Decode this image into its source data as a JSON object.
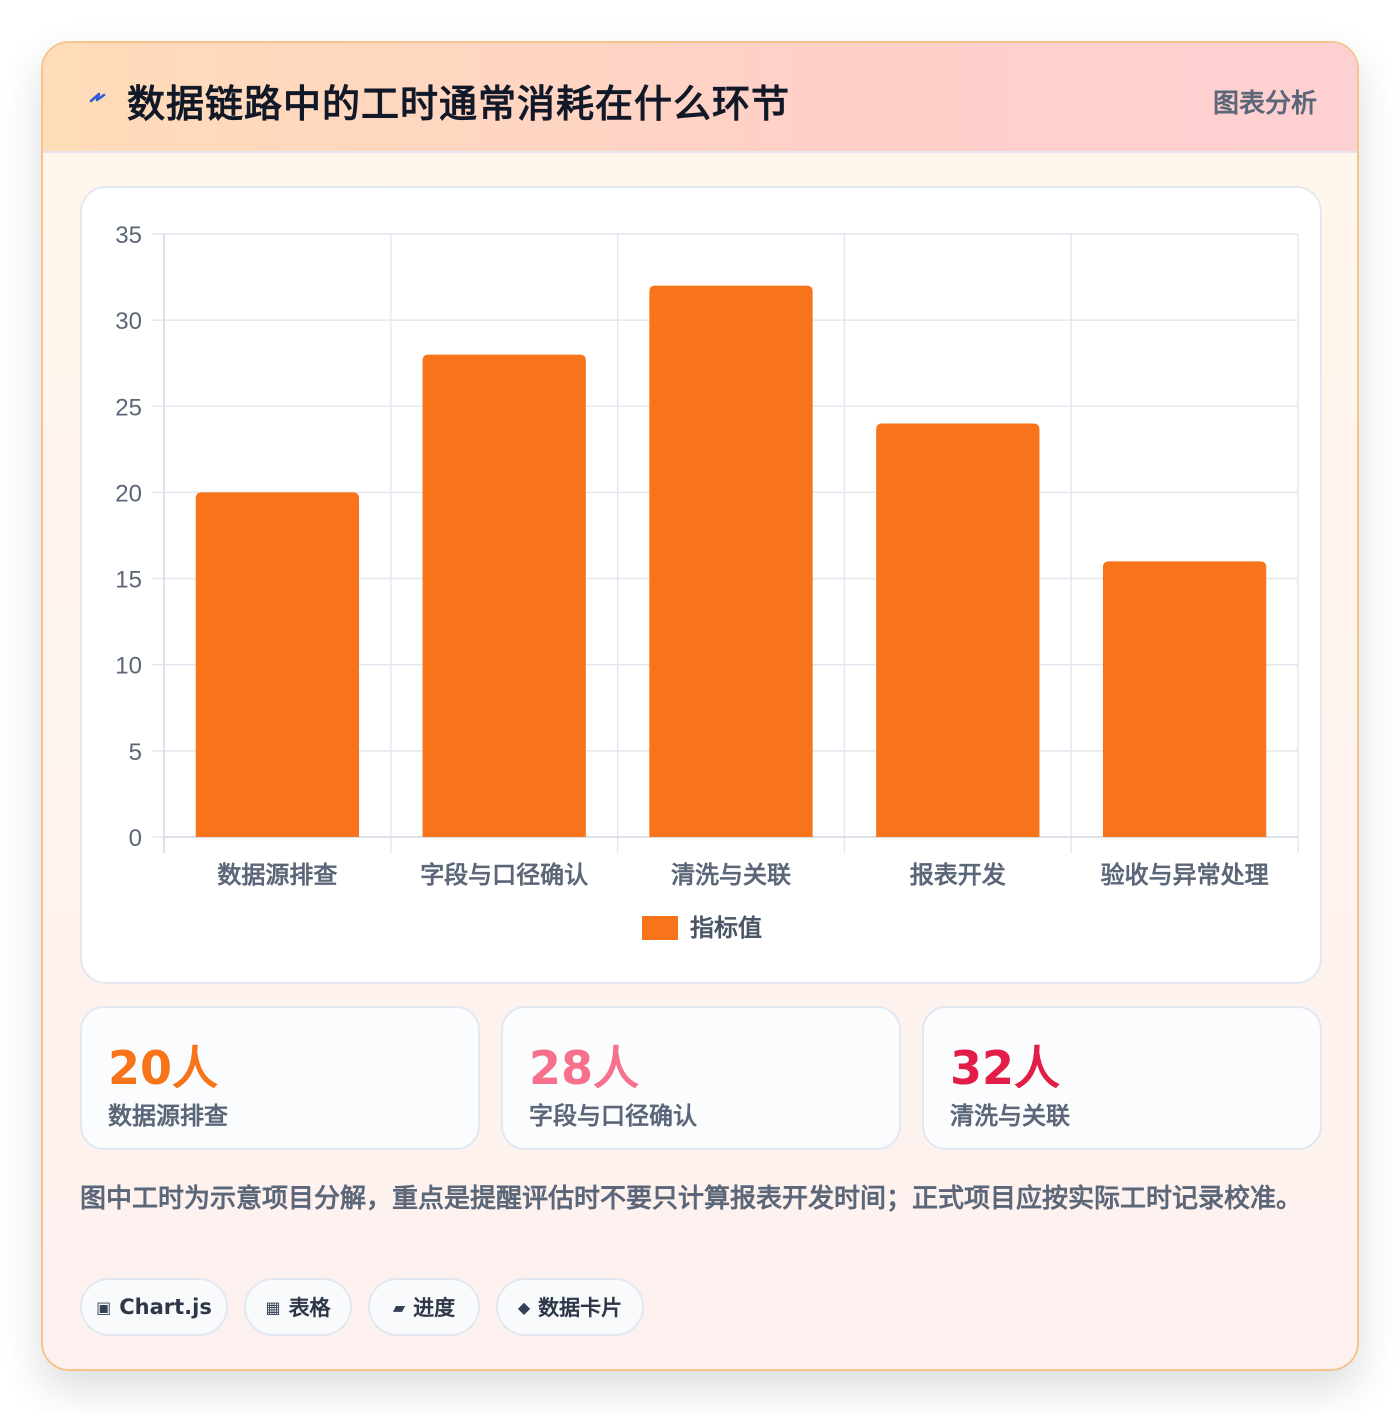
{
  "header": {
    "icon": "lightning-bolt-icon",
    "title": "数据链路中的工时通常消耗在什么环节",
    "tag": "图表分析"
  },
  "chart_data": {
    "type": "bar",
    "categories": [
      "数据源排查",
      "字段与口径确认",
      "清洗与关联",
      "报表开发",
      "验收与异常处理"
    ],
    "series": [
      {
        "name": "指标值",
        "values": [
          20,
          28,
          32,
          24,
          16
        ],
        "color": "#f7741a"
      }
    ],
    "ylim": [
      0,
      35
    ],
    "yticks": [
      0,
      5,
      10,
      15,
      20,
      25,
      30,
      35
    ],
    "grid": true,
    "legend": "bottom"
  },
  "stats": [
    {
      "value": "20人",
      "label": "数据源排查",
      "color": "#f7741a"
    },
    {
      "value": "28人",
      "label": "字段与口径确认",
      "color": "#f7718c"
    },
    {
      "value": "32人",
      "label": "清洗与关联",
      "color": "#e11d48"
    }
  ],
  "note": "图中工时为示意项目分解，重点是提醒评估时不要只计算报表开发时间；正式项目应按实际工时记录校准。",
  "chips": [
    {
      "icon": "chart-icon",
      "label": "Chart.js"
    },
    {
      "icon": "table-icon",
      "label": "表格"
    },
    {
      "icon": "progress-icon",
      "label": "进度"
    },
    {
      "icon": "diamond-icon",
      "label": "数据卡片"
    }
  ]
}
